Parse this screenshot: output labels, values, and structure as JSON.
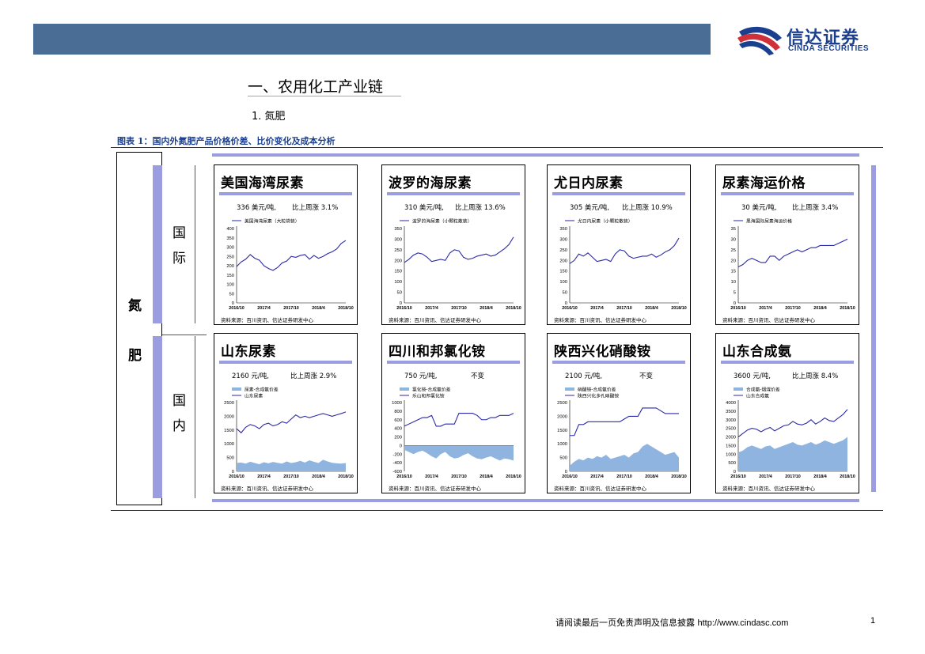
{
  "header": {
    "logo_cn": "信达证券",
    "logo_en": "CINDA SECURITIES"
  },
  "section": {
    "heading": "一、农用化工产业链",
    "subheading": "1. 氮肥"
  },
  "figure": {
    "title": "图表 1：国内外氮肥产品价格价差、比价变化及成本分析",
    "category_chars": [
      "氮",
      "肥"
    ],
    "group_international": [
      "国",
      "际"
    ],
    "group_domestic": [
      "国",
      "内"
    ]
  },
  "colors": {
    "banner": "#4a6d96",
    "accent_bar": "#9a9de0",
    "line_series": "#2a2aa8",
    "area_series": "#8fb4e0",
    "logo_blue": "#1b3f8f",
    "logo_red": "#d0303a"
  },
  "panels": [
    {
      "title": "美国海湾尿素",
      "value_text": "336 美元/吨,",
      "change_text": "比上周涨 3.1%",
      "legend": [
        "美国海湾尿素（大粒袋装）"
      ],
      "source": "资料来源：百川资讯、信达证券研发中心",
      "chart_data": {
        "type": "line",
        "x_ticks": [
          "2016/10",
          "2017/4",
          "2017/10",
          "2018/4",
          "2018/10"
        ],
        "y_ticks": [
          "0",
          "50",
          "100",
          "150",
          "200",
          "250",
          "300",
          "350",
          "400"
        ],
        "ylim": [
          0,
          400
        ],
        "series": [
          {
            "name": "美国海湾尿素（大粒袋装）",
            "kind": "line",
            "values": [
              195,
              220,
              235,
              260,
              240,
              230,
              200,
              185,
              175,
              190,
              215,
              225,
              250,
              245,
              255,
              260,
              235,
              255,
              240,
              250,
              265,
              275,
              290,
              320,
              336
            ]
          }
        ]
      }
    },
    {
      "title": "波罗的海尿素",
      "value_text": "310 美元/吨,",
      "change_text": "比上周涨 13.6%",
      "legend": [
        "波罗的海尿素（小颗粒散装）"
      ],
      "source": "资料来源：百川资讯、信达证券研发中心",
      "chart_data": {
        "type": "line",
        "x_ticks": [
          "2016/10",
          "2017/4",
          "2017/10",
          "2018/4",
          "2018/10"
        ],
        "y_ticks": [
          "0",
          "50",
          "100",
          "150",
          "200",
          "250",
          "300",
          "350"
        ],
        "ylim": [
          0,
          350
        ],
        "series": [
          {
            "name": "波罗的海尿素（小颗粒散装）",
            "kind": "line",
            "values": [
              190,
              205,
              225,
              235,
              230,
              215,
              195,
              200,
              205,
              200,
              235,
              250,
              245,
              215,
              205,
              210,
              220,
              225,
              230,
              220,
              225,
              240,
              255,
              275,
              310
            ]
          }
        ]
      }
    },
    {
      "title": "尤日内尿素",
      "value_text": "305 美元/吨,",
      "change_text": "比上周涨 10.9%",
      "legend": [
        "尤日内尿素（小颗粒散装）"
      ],
      "source": "资料来源：百川资讯、信达证券研发中心",
      "chart_data": {
        "type": "line",
        "x_ticks": [
          "2016/10",
          "2017/4",
          "2017/10",
          "2018/4",
          "2018/10"
        ],
        "y_ticks": [
          "0",
          "50",
          "100",
          "150",
          "200",
          "250",
          "300",
          "350"
        ],
        "ylim": [
          0,
          350
        ],
        "series": [
          {
            "name": "尤日内尿素（小颗粒散装）",
            "kind": "line",
            "values": [
              185,
              200,
              230,
              220,
              235,
              215,
              195,
              200,
              205,
              195,
              230,
              250,
              245,
              220,
              210,
              215,
              220,
              220,
              230,
              215,
              225,
              240,
              250,
              270,
              305
            ]
          }
        ]
      }
    },
    {
      "title": "尿素海运价格",
      "value_text": "30 美元/吨,",
      "change_text": "比上周涨 3.4%",
      "legend": [
        "黑海国际尿素海运价格"
      ],
      "source": "资料来源：百川资讯、信达证券研发中心",
      "chart_data": {
        "type": "line",
        "x_ticks": [
          "2016/10",
          "2017/4",
          "2017/10",
          "2018/4",
          "2018/10"
        ],
        "y_ticks": [
          "0",
          "5",
          "10",
          "15",
          "20",
          "25",
          "30",
          "35"
        ],
        "ylim": [
          0,
          35
        ],
        "series": [
          {
            "name": "黑海国际尿素海运价格",
            "kind": "line",
            "values": [
              17,
              18,
              20,
              21,
              20,
              19,
              19,
              22,
              22,
              20,
              22,
              23,
              24,
              25,
              24,
              25,
              26,
              26,
              27,
              27,
              27,
              27,
              28,
              29,
              30
            ]
          }
        ]
      }
    },
    {
      "title": "山东尿素",
      "value_text": "2160 元/吨,",
      "change_text": "比上周涨 2.9%",
      "legend": [
        "尿素-合成氨价差",
        "山东尿素"
      ],
      "source": "资料来源：百川资讯、信达证券研发中心",
      "chart_data": {
        "type": "line",
        "x_ticks": [
          "2016/10",
          "2017/4",
          "2017/10",
          "2018/4",
          "2018/10"
        ],
        "y_ticks": [
          "0",
          "500",
          "1000",
          "1500",
          "2000",
          "2500"
        ],
        "ylim": [
          0,
          2500
        ],
        "series": [
          {
            "name": "尿素-合成氨价差",
            "kind": "area",
            "values": [
              300,
              320,
              280,
              350,
              300,
              260,
              330,
              290,
              340,
              310,
              280,
              360,
              300,
              330,
              380,
              320,
              400,
              350,
              300,
              420,
              360,
              310,
              290,
              280,
              300
            ]
          },
          {
            "name": "山东尿素",
            "kind": "line",
            "values": [
              1550,
              1400,
              1600,
              1700,
              1650,
              1550,
              1700,
              1750,
              1650,
              1700,
              1800,
              1750,
              1900,
              2050,
              1950,
              2000,
              1950,
              2000,
              2050,
              2100,
              2050,
              2000,
              2050,
              2100,
              2160
            ]
          }
        ]
      }
    },
    {
      "title": "四川和邦氯化铵",
      "value_text": "750 元/吨,",
      "change_text": "不变",
      "legend": [
        "氯化铵-合成氨价差",
        "乐山和邦氯化铵"
      ],
      "source": "资料来源：百川资讯、信达证券研发中心",
      "chart_data": {
        "type": "line",
        "x_ticks": [
          "2016/10",
          "2017/4",
          "2017/10",
          "2018/4",
          "2018/10"
        ],
        "y_ticks": [
          "-600",
          "-400",
          "-200",
          "0",
          "200",
          "400",
          "600",
          "800",
          "1000"
        ],
        "ylim": [
          -600,
          1000
        ],
        "series": [
          {
            "name": "氯化铵-合成氨价差",
            "kind": "area",
            "values": [
              -100,
              -150,
              -200,
              -150,
              -120,
              -180,
              -250,
              -300,
              -200,
              -150,
              -250,
              -300,
              -280,
              -220,
              -180,
              -250,
              -300,
              -320,
              -280,
              -250,
              -300,
              -350,
              -300,
              -320,
              -350
            ]
          },
          {
            "name": "乐山和邦氯化铵",
            "kind": "line",
            "values": [
              450,
              500,
              550,
              600,
              650,
              650,
              700,
              450,
              450,
              500,
              500,
              500,
              750,
              750,
              750,
              750,
              700,
              600,
              600,
              650,
              650,
              700,
              700,
              700,
              750
            ]
          }
        ]
      }
    },
    {
      "title": "陕西兴化硝酸铵",
      "value_text": "2100 元/吨,",
      "change_text": "不变",
      "legend": [
        "硝酸铵-合成氨价差",
        "陕西兴化多孔硝酸铵"
      ],
      "source": "资料来源：百川资讯、信达证券研发中心",
      "chart_data": {
        "type": "line",
        "x_ticks": [
          "2016/10",
          "2017/4",
          "2017/10",
          "2018/4",
          "2018/10"
        ],
        "y_ticks": [
          "0",
          "500",
          "1000",
          "1500",
          "2000",
          "2500"
        ],
        "ylim": [
          0,
          2500
        ],
        "series": [
          {
            "name": "硝酸铵-合成氨价差",
            "kind": "area",
            "values": [
              200,
              350,
              450,
              400,
              500,
              450,
              550,
              500,
              600,
              450,
              500,
              550,
              600,
              500,
              650,
              700,
              900,
              1000,
              900,
              800,
              700,
              600,
              650,
              700,
              500
            ]
          },
          {
            "name": "陕西兴化多孔硝酸铵",
            "kind": "line",
            "values": [
              1300,
              1300,
              1700,
              1700,
              1800,
              1800,
              1800,
              1800,
              1800,
              1800,
              1800,
              1800,
              1900,
              2000,
              2000,
              2000,
              2300,
              2300,
              2300,
              2300,
              2200,
              2100,
              2100,
              2100,
              2100
            ]
          }
        ]
      }
    },
    {
      "title": "山东合成氨",
      "value_text": "3600 元/吨,",
      "change_text": "比上周涨 8.4%",
      "legend": [
        "合成氨-烟煤价差",
        "山东合成氨"
      ],
      "source": "资料来源：百川资讯、信达证券研发中心",
      "chart_data": {
        "type": "line",
        "x_ticks": [
          "2016/10",
          "2017/4",
          "2017/10",
          "2018/4",
          "2018/10"
        ],
        "y_ticks": [
          "0",
          "500",
          "1000",
          "1500",
          "2000",
          "2500",
          "3000",
          "3500",
          "4000"
        ],
        "ylim": [
          0,
          4000
        ],
        "series": [
          {
            "name": "合成氨-烟煤价差",
            "kind": "area",
            "values": [
              1100,
              1200,
              1400,
              1500,
              1400,
              1300,
              1450,
              1500,
              1300,
              1400,
              1500,
              1600,
              1700,
              1550,
              1500,
              1600,
              1700,
              1550,
              1650,
              1800,
              1700,
              1600,
              1700,
              1800,
              2000
            ]
          },
          {
            "name": "山东合成氨",
            "kind": "line",
            "values": [
              2000,
              2200,
              2400,
              2500,
              2450,
              2300,
              2450,
              2550,
              2350,
              2500,
              2650,
              2700,
              2900,
              2750,
              2700,
              2800,
              3000,
              2750,
              2900,
              3100,
              2950,
              2900,
              3100,
              3300,
              3600
            ]
          }
        ]
      }
    }
  ],
  "footer": {
    "disclaimer": "请阅读最后一页免责声明及信息披露",
    "url": "http://www.cindasc.com",
    "page": "1"
  }
}
